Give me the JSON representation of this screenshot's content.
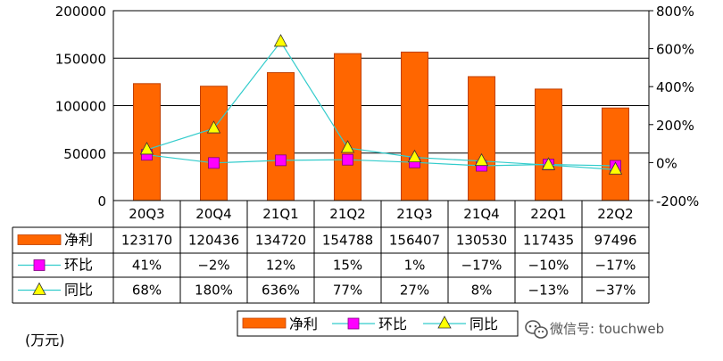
{
  "chart_data": {
    "type": "bar",
    "categories": [
      "20Q3",
      "20Q4",
      "21Q1",
      "21Q2",
      "21Q3",
      "21Q4",
      "22Q1",
      "22Q2"
    ],
    "series": [
      {
        "name": "净利",
        "kind": "bar",
        "axis": "left",
        "values": [
          123170,
          120436,
          134720,
          154788,
          156407,
          130530,
          117435,
          97496
        ],
        "labels": [
          "123170",
          "120436",
          "134720",
          "154788",
          "156407",
          "130530",
          "117435",
          "97496"
        ]
      },
      {
        "name": "环比",
        "kind": "line",
        "axis": "right",
        "values": [
          41,
          -2,
          12,
          15,
          1,
          -17,
          -10,
          -17
        ],
        "labels": [
          "41%",
          "−2%",
          "12%",
          "15%",
          "1%",
          "−17%",
          "−10%",
          "−17%"
        ]
      },
      {
        "name": "同比",
        "kind": "line",
        "axis": "right",
        "values": [
          68,
          180,
          636,
          77,
          27,
          8,
          -13,
          -37
        ],
        "labels": [
          "68%",
          "180%",
          "636%",
          "77%",
          "27%",
          "8%",
          "−13%",
          "−37%"
        ]
      }
    ],
    "left_axis": {
      "min": 0,
      "max": 200000,
      "ticks": [
        "0",
        "50000",
        "100000",
        "150000",
        "200000"
      ]
    },
    "right_axis": {
      "min": -200,
      "max": 800,
      "ticks": [
        "-200%",
        "0%",
        "200%",
        "400%",
        "600%",
        "800%"
      ]
    },
    "unit_label": "(万元)",
    "grid": true,
    "legend_position": "bottom",
    "colors": {
      "bar": "#FF6600",
      "bar_edge": "#C04000",
      "qoq": "#FF00FF",
      "yoy": "#FFFF00",
      "line": "#33CCCC"
    }
  },
  "watermark": {
    "icon": "wechat-icon",
    "text": "微信号: touchweb"
  }
}
